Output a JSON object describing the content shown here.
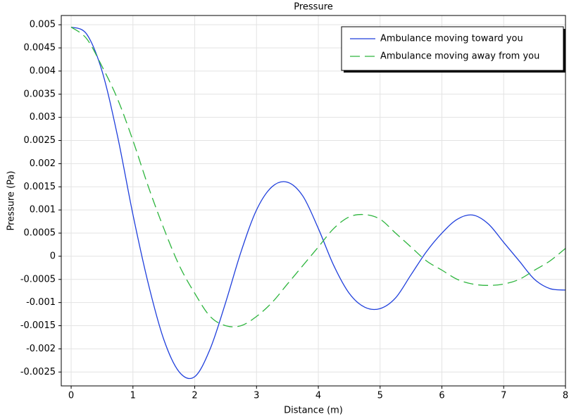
{
  "chart_data": {
    "type": "line",
    "title": "Pressure",
    "x_label": "Distance (m)",
    "y_label": "Pressure (Pa)",
    "x": [
      0,
      0.25,
      0.5,
      0.75,
      1,
      1.25,
      1.5,
      1.75,
      2,
      2.25,
      2.5,
      2.75,
      3,
      3.25,
      3.5,
      3.75,
      4,
      4.25,
      4.5,
      4.75,
      5,
      5.25,
      5.5,
      5.75,
      6,
      6.25,
      6.5,
      6.75,
      7,
      7.25,
      7.5,
      7.75,
      8
    ],
    "series": [
      {
        "name": "Ambulance moving toward you",
        "color": "#1f3fdc",
        "dash": "solid",
        "values": [
          0.00495,
          0.0048,
          0.004,
          0.0026,
          0.0009,
          -0.0006,
          -0.0018,
          -0.0025,
          -0.0026,
          -0.002,
          -0.001,
          0.0001,
          0.001,
          0.0015,
          0.0016,
          0.0013,
          0.0006,
          -0.0002,
          -0.0008,
          -0.0011,
          -0.00113,
          -0.0009,
          -0.0004,
          0.0001,
          0.0005,
          0.0008,
          0.00089,
          0.0007,
          0.0003,
          -0.0001,
          -0.0005,
          -0.0007,
          -0.00073
        ]
      },
      {
        "name": "Ambulance moving away from you",
        "color": "#2db53d",
        "dash": "dashed",
        "values": [
          0.00495,
          0.0047,
          0.0041,
          0.0034,
          0.0025,
          0.0015,
          0.0006,
          -0.0002,
          -0.0008,
          -0.0013,
          -0.0015,
          -0.0015,
          -0.0013,
          -0.001,
          -0.0006,
          -0.0002,
          0.0002,
          0.0006,
          0.00085,
          0.0009,
          0.0008,
          0.0005,
          0.0002,
          -0.0001,
          -0.0003,
          -0.0005,
          -0.0006,
          -0.00063,
          -0.0006,
          -0.0005,
          -0.0003,
          -0.0001,
          0.00017
        ]
      }
    ],
    "xlim": [
      -0.16,
      8
    ],
    "ylim": [
      -0.0028,
      0.0052
    ],
    "xticks": [
      0,
      1,
      2,
      3,
      4,
      5,
      6,
      7,
      8
    ],
    "yticks": [
      0.005,
      0.0045,
      0.004,
      0.0035,
      0.003,
      0.0025,
      0.002,
      0.0015,
      0.001,
      0.0005,
      0,
      -0.0005,
      -0.001,
      -0.0015,
      -0.002,
      -0.0025
    ],
    "grid": true,
    "legend_position": "upper right"
  }
}
